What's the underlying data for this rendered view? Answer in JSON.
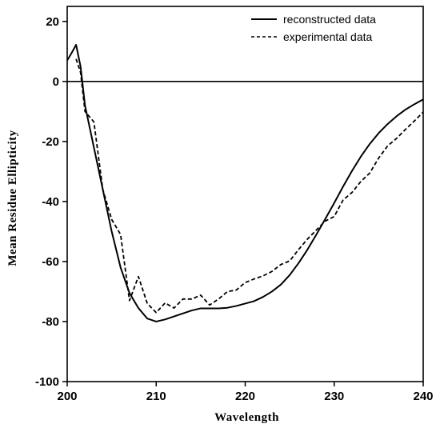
{
  "chart_data": {
    "type": "line",
    "title": "",
    "xlabel": "Wavelength",
    "ylabel": "Mean Residue Ellipticity",
    "xlim": [
      200,
      240
    ],
    "ylim": [
      -100,
      25
    ],
    "x_ticks": [
      200,
      210,
      220,
      230,
      240
    ],
    "y_ticks": [
      20,
      0,
      -20,
      -40,
      -60,
      -80,
      -100
    ],
    "x_tick_labels": [
      "200",
      "210",
      "220",
      "230",
      "240"
    ],
    "y_tick_labels": [
      "20",
      "0",
      "-20",
      "-40",
      "-60",
      "-80",
      "-100"
    ],
    "zero_line": 0,
    "grid": false,
    "legend_position": "top-right",
    "series": [
      {
        "name": "reconstructed data",
        "style": "solid",
        "color": "#000000",
        "points": [
          [
            200,
            7
          ],
          [
            200.5,
            9.5
          ],
          [
            201,
            12.2
          ],
          [
            201.5,
            5
          ],
          [
            202,
            -8
          ],
          [
            203,
            -22
          ],
          [
            204,
            -36
          ],
          [
            205,
            -50
          ],
          [
            206,
            -62
          ],
          [
            207,
            -70.5
          ],
          [
            208,
            -75.5
          ],
          [
            209,
            -79
          ],
          [
            210,
            -80
          ],
          [
            211,
            -79.3
          ],
          [
            212,
            -78.3
          ],
          [
            213,
            -77.3
          ],
          [
            214,
            -76.3
          ],
          [
            215,
            -75.6
          ],
          [
            216,
            -75.6
          ],
          [
            217,
            -75.6
          ],
          [
            218,
            -75.4
          ],
          [
            219,
            -74.8
          ],
          [
            220,
            -74
          ],
          [
            221,
            -73.2
          ],
          [
            222,
            -71.8
          ],
          [
            223,
            -70
          ],
          [
            224,
            -67.7
          ],
          [
            225,
            -64.5
          ],
          [
            226,
            -60.5
          ],
          [
            227,
            -56
          ],
          [
            228,
            -51
          ],
          [
            229,
            -45.8
          ],
          [
            230,
            -40.5
          ],
          [
            231,
            -35
          ],
          [
            232,
            -29.8
          ],
          [
            233,
            -25
          ],
          [
            234,
            -20.8
          ],
          [
            235,
            -17.2
          ],
          [
            236,
            -14.2
          ],
          [
            237,
            -11.6
          ],
          [
            238,
            -9.4
          ],
          [
            239,
            -7.6
          ],
          [
            240,
            -6
          ]
        ]
      },
      {
        "name": "experimental data",
        "style": "dashed",
        "color": "#000000",
        "points": [
          [
            201,
            7.5
          ],
          [
            201.5,
            3
          ],
          [
            202,
            -10
          ],
          [
            203,
            -13.5
          ],
          [
            204,
            -36
          ],
          [
            205,
            -46
          ],
          [
            206,
            -51
          ],
          [
            206.5,
            -62
          ],
          [
            207,
            -73
          ],
          [
            208,
            -65
          ],
          [
            209,
            -74
          ],
          [
            210,
            -77
          ],
          [
            211,
            -73.8
          ],
          [
            212,
            -75.5
          ],
          [
            213,
            -72.5
          ],
          [
            214,
            -72.5
          ],
          [
            215,
            -71.2
          ],
          [
            216,
            -74.5
          ],
          [
            217,
            -72.5
          ],
          [
            218,
            -70
          ],
          [
            219,
            -69.5
          ],
          [
            220,
            -67
          ],
          [
            221,
            -65.8
          ],
          [
            222,
            -64.8
          ],
          [
            223,
            -63.3
          ],
          [
            224,
            -61
          ],
          [
            225,
            -59.8
          ],
          [
            226,
            -56
          ],
          [
            227,
            -52.5
          ],
          [
            228,
            -49.5
          ],
          [
            229,
            -46.5
          ],
          [
            230,
            -45
          ],
          [
            231,
            -39.5
          ],
          [
            232,
            -37
          ],
          [
            233,
            -33.3
          ],
          [
            234,
            -30.5
          ],
          [
            235,
            -25.5
          ],
          [
            236,
            -21.5
          ],
          [
            237,
            -19
          ],
          [
            238,
            -16
          ],
          [
            239,
            -13.2
          ],
          [
            240,
            -10.2
          ]
        ]
      }
    ]
  }
}
